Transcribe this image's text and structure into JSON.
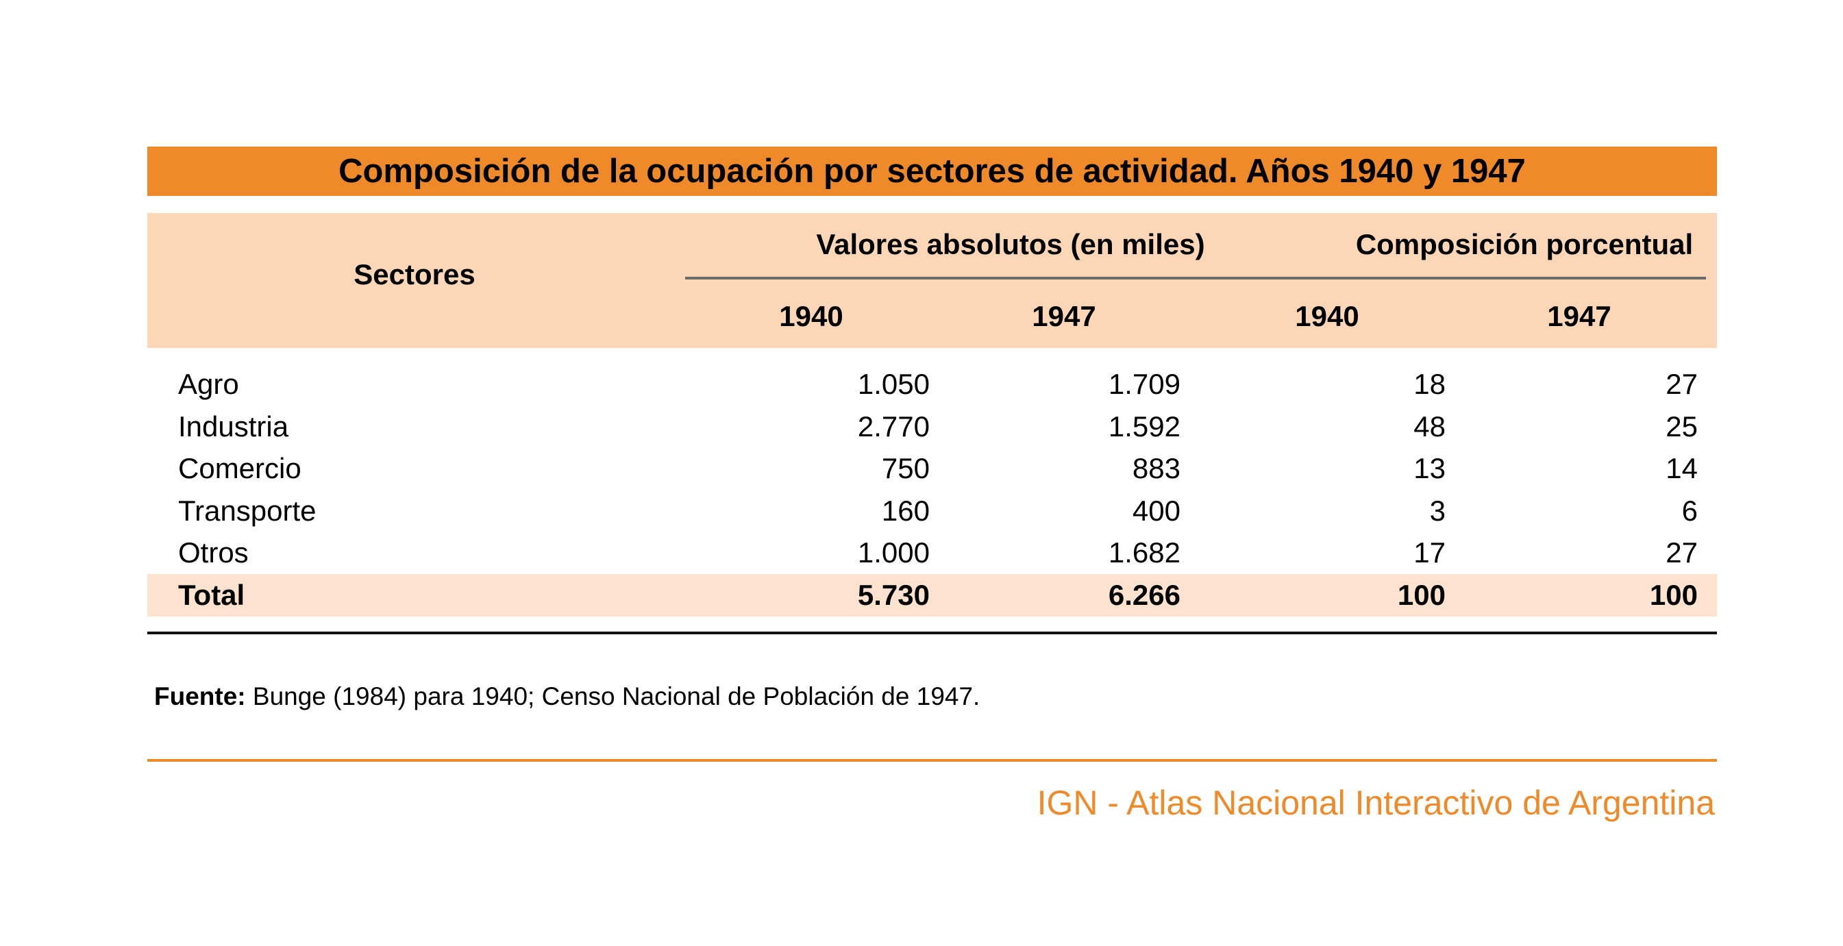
{
  "title": "Composición de la ocupación por sectores de actividad. Años 1940 y 1947",
  "header": {
    "sectors": "Sectores",
    "group_absolute": "Valores absolutos (en miles)",
    "group_percent": "Composición porcentual",
    "years": [
      "1940",
      "1947",
      "1940",
      "1947"
    ]
  },
  "rows": [
    {
      "label": "Agro",
      "abs_1940": "1.050",
      "abs_1947": "1.709",
      "pct_1940": "18",
      "pct_1947": "27"
    },
    {
      "label": "Industria",
      "abs_1940": "2.770",
      "abs_1947": "1.592",
      "pct_1940": "48",
      "pct_1947": "25"
    },
    {
      "label": "Comercio",
      "abs_1940": "750",
      "abs_1947": "883",
      "pct_1940": "13",
      "pct_1947": "14"
    },
    {
      "label": "Transporte",
      "abs_1940": "160",
      "abs_1947": "400",
      "pct_1940": "3",
      "pct_1947": "6"
    },
    {
      "label": "Otros",
      "abs_1940": "1.000",
      "abs_1947": "1.682",
      "pct_1940": "17",
      "pct_1947": "27"
    }
  ],
  "total": {
    "label": "Total",
    "abs_1940": "5.730",
    "abs_1947": "6.266",
    "pct_1940": "100",
    "pct_1947": "100"
  },
  "source": {
    "label": "Fuente:",
    "text": "Bunge (1984) para 1940; Censo Nacional de Población de 1947."
  },
  "credit": "IGN - Atlas Nacional Interactivo de Argentina",
  "colors": {
    "accent": "#ee8a2a",
    "header_bg": "#fbd7b8",
    "total_bg": "#fde3cf"
  }
}
